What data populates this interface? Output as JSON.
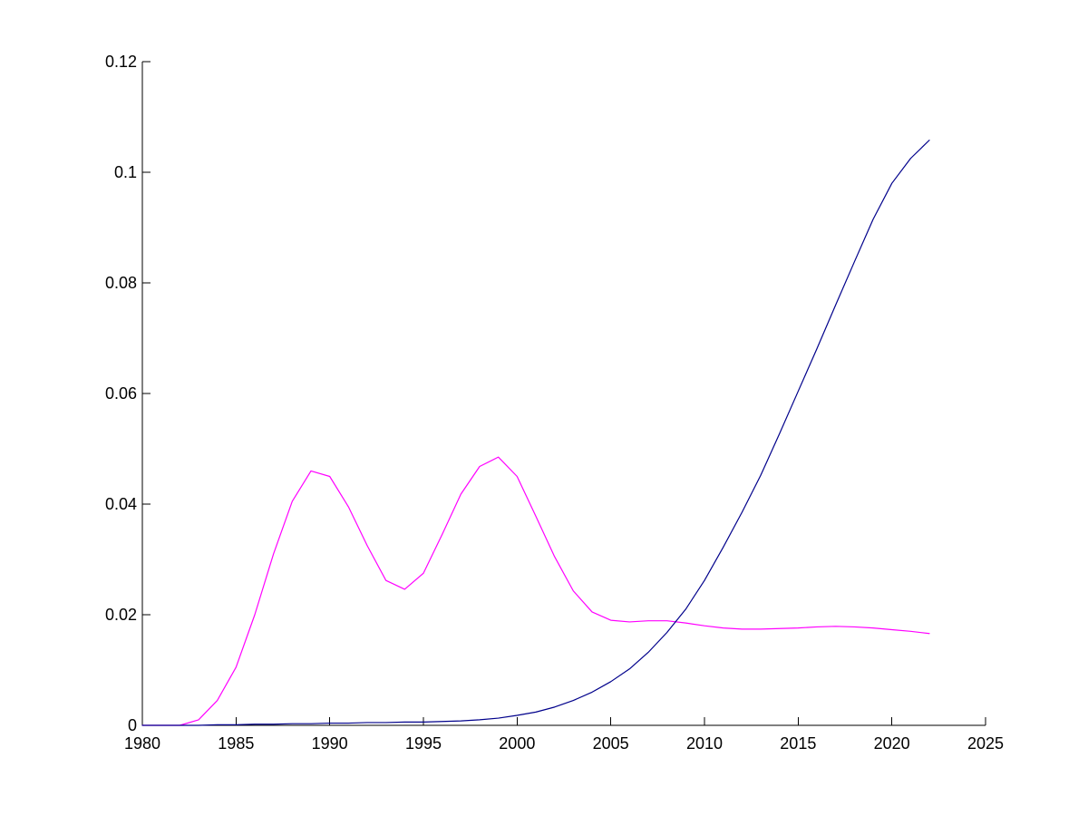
{
  "chart_data": {
    "type": "line",
    "title": "",
    "xlabel": "",
    "ylabel": "",
    "xlim": [
      1980,
      2025
    ],
    "ylim": [
      0,
      0.12
    ],
    "xticks": [
      1980,
      1985,
      1990,
      1995,
      2000,
      2005,
      2010,
      2015,
      2020,
      2025
    ],
    "xtick_labels": [
      "1980",
      "1985",
      "1990",
      "1995",
      "2000",
      "2005",
      "2010",
      "2015",
      "2020",
      "2025"
    ],
    "yticks": [
      0,
      0.02,
      0.04,
      0.06,
      0.08,
      0.1,
      0.12
    ],
    "ytick_labels": [
      "0",
      "0.02",
      "0.04",
      "0.06",
      "0.08",
      "0.1",
      "0.12"
    ],
    "grid": false,
    "legend": "none",
    "box": "left-bottom",
    "series": [
      {
        "color": "#ff00ff",
        "x": [
          1980,
          1981,
          1982,
          1983,
          1984,
          1985,
          1986,
          1987,
          1988,
          1989,
          1990,
          1991,
          1992,
          1993,
          1994,
          1995,
          1996,
          1997,
          1998,
          1999,
          2000,
          2001,
          2002,
          2003,
          2004,
          2005,
          2006,
          2007,
          2008,
          2009,
          2010,
          2011,
          2012,
          2013,
          2014,
          2015,
          2016,
          2017,
          2018,
          2019,
          2020,
          2021,
          2022
        ],
        "y": [
          0.0,
          0.0,
          0.0,
          0.001,
          0.0045,
          0.0105,
          0.02,
          0.031,
          0.0405,
          0.046,
          0.045,
          0.0395,
          0.0325,
          0.0262,
          0.0246,
          0.0275,
          0.0345,
          0.0418,
          0.0468,
          0.0485,
          0.045,
          0.0378,
          0.0305,
          0.0243,
          0.0205,
          0.019,
          0.0187,
          0.0189,
          0.0189,
          0.0185,
          0.018,
          0.0176,
          0.0174,
          0.0174,
          0.0175,
          0.0176,
          0.0178,
          0.0179,
          0.0178,
          0.0176,
          0.0173,
          0.017,
          0.0166
        ]
      },
      {
        "color": "#00008b",
        "x": [
          1980,
          1981,
          1982,
          1983,
          1984,
          1985,
          1986,
          1987,
          1988,
          1989,
          1990,
          1991,
          1992,
          1993,
          1994,
          1995,
          1996,
          1997,
          1998,
          1999,
          2000,
          2001,
          2002,
          2003,
          2004,
          2005,
          2006,
          2007,
          2008,
          2009,
          2010,
          2011,
          2012,
          2013,
          2014,
          2015,
          2016,
          2017,
          2018,
          2019,
          2020,
          2021,
          2022
        ],
        "y": [
          0.0,
          0.0,
          0.0,
          0.0,
          0.0001,
          0.0001,
          0.0002,
          0.0002,
          0.0003,
          0.0003,
          0.0004,
          0.0004,
          0.0005,
          0.0005,
          0.0006,
          0.0006,
          0.0007,
          0.0008,
          0.001,
          0.0013,
          0.0018,
          0.0024,
          0.0033,
          0.0045,
          0.006,
          0.0079,
          0.0102,
          0.0132,
          0.0168,
          0.021,
          0.0262,
          0.0322,
          0.0385,
          0.0452,
          0.0527,
          0.0604,
          0.0681,
          0.076,
          0.0838,
          0.0915,
          0.098,
          0.1025,
          0.1058
        ]
      }
    ]
  }
}
